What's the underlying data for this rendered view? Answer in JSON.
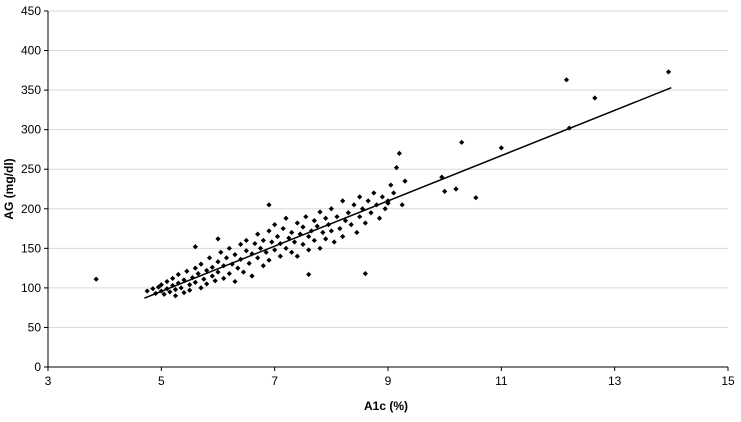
{
  "chart_data": {
    "type": "scatter",
    "xlabel": "A1c (%)",
    "ylabel": "AG (mg/dl)",
    "xlim": [
      3,
      15
    ],
    "ylim": [
      0,
      450
    ],
    "x_ticks": [
      3,
      5,
      7,
      9,
      11,
      13,
      15
    ],
    "y_ticks": [
      0,
      50,
      100,
      150,
      200,
      250,
      300,
      350,
      400,
      450
    ],
    "grid": "horizontal",
    "marker": "diamond",
    "colors": {
      "marker": "#000000",
      "trendline": "#000000",
      "gridline": "#d9d9d9"
    },
    "trendline": {
      "x": [
        4.7,
        14.0
      ],
      "y": [
        87,
        353
      ]
    },
    "points": [
      [
        3.85,
        111
      ],
      [
        4.75,
        96
      ],
      [
        4.85,
        99
      ],
      [
        4.9,
        93
      ],
      [
        4.95,
        101
      ],
      [
        5.0,
        96
      ],
      [
        5.0,
        104
      ],
      [
        5.05,
        92
      ],
      [
        5.1,
        99
      ],
      [
        5.1,
        108
      ],
      [
        5.15,
        95
      ],
      [
        5.2,
        103
      ],
      [
        5.2,
        112
      ],
      [
        5.25,
        98
      ],
      [
        5.25,
        90
      ],
      [
        5.3,
        106
      ],
      [
        5.3,
        117
      ],
      [
        5.35,
        100
      ],
      [
        5.4,
        94
      ],
      [
        5.4,
        110
      ],
      [
        5.45,
        121
      ],
      [
        5.5,
        104
      ],
      [
        5.5,
        97
      ],
      [
        5.55,
        113
      ],
      [
        5.6,
        125
      ],
      [
        5.6,
        107
      ],
      [
        5.65,
        118
      ],
      [
        5.7,
        100
      ],
      [
        5.7,
        130
      ],
      [
        5.75,
        111
      ],
      [
        5.8,
        122
      ],
      [
        5.8,
        105
      ],
      [
        5.85,
        138
      ],
      [
        5.9,
        115
      ],
      [
        5.9,
        126
      ],
      [
        5.95,
        109
      ],
      [
        6.0,
        133
      ],
      [
        6.0,
        120
      ],
      [
        6.05,
        145
      ],
      [
        6.1,
        112
      ],
      [
        6.1,
        128
      ],
      [
        6.15,
        138
      ],
      [
        6.2,
        118
      ],
      [
        6.2,
        150
      ],
      [
        6.25,
        130
      ],
      [
        6.3,
        142
      ],
      [
        6.3,
        108
      ],
      [
        6.35,
        125
      ],
      [
        6.4,
        155
      ],
      [
        6.4,
        136
      ],
      [
        6.45,
        120
      ],
      [
        6.5,
        147
      ],
      [
        6.5,
        160
      ],
      [
        6.55,
        131
      ],
      [
        6.6,
        143
      ],
      [
        6.6,
        115
      ],
      [
        6.65,
        156
      ],
      [
        6.7,
        138
      ],
      [
        6.7,
        168
      ],
      [
        6.75,
        150
      ],
      [
        6.8,
        128
      ],
      [
        6.8,
        160
      ],
      [
        6.85,
        145
      ],
      [
        6.9,
        172
      ],
      [
        6.9,
        135
      ],
      [
        6.95,
        158
      ],
      [
        7.0,
        148
      ],
      [
        7.0,
        180
      ],
      [
        7.05,
        165
      ],
      [
        7.1,
        140
      ],
      [
        7.1,
        156
      ],
      [
        7.15,
        175
      ],
      [
        7.2,
        150
      ],
      [
        7.2,
        188
      ],
      [
        7.25,
        163
      ],
      [
        7.3,
        145
      ],
      [
        7.3,
        170
      ],
      [
        7.35,
        158
      ],
      [
        7.4,
        182
      ],
      [
        7.4,
        140
      ],
      [
        7.45,
        168
      ],
      [
        7.5,
        177
      ],
      [
        7.5,
        155
      ],
      [
        7.55,
        190
      ],
      [
        7.6,
        165
      ],
      [
        7.6,
        148
      ],
      [
        7.65,
        172
      ],
      [
        7.7,
        185
      ],
      [
        7.7,
        160
      ],
      [
        7.75,
        178
      ],
      [
        7.8,
        196
      ],
      [
        7.8,
        150
      ],
      [
        7.85,
        170
      ],
      [
        7.9,
        188
      ],
      [
        7.9,
        162
      ],
      [
        7.95,
        180
      ],
      [
        8.0,
        200
      ],
      [
        8.0,
        172
      ],
      [
        8.05,
        158
      ],
      [
        8.1,
        190
      ],
      [
        8.15,
        175
      ],
      [
        8.2,
        210
      ],
      [
        8.2,
        165
      ],
      [
        8.25,
        185
      ],
      [
        8.3,
        195
      ],
      [
        8.35,
        180
      ],
      [
        8.4,
        205
      ],
      [
        8.45,
        170
      ],
      [
        8.5,
        190
      ],
      [
        8.5,
        215
      ],
      [
        8.55,
        200
      ],
      [
        8.6,
        182
      ],
      [
        8.65,
        210
      ],
      [
        8.7,
        195
      ],
      [
        8.75,
        220
      ],
      [
        8.8,
        205
      ],
      [
        8.85,
        188
      ],
      [
        8.9,
        215
      ],
      [
        8.95,
        200
      ],
      [
        9.0,
        210
      ],
      [
        9.05,
        230
      ],
      [
        9.1,
        220
      ],
      [
        9.15,
        252
      ],
      [
        9.2,
        270
      ],
      [
        9.25,
        205
      ],
      [
        9.3,
        235
      ],
      [
        6.0,
        162
      ],
      [
        5.6,
        152
      ],
      [
        6.9,
        205
      ],
      [
        7.6,
        117
      ],
      [
        8.6,
        118
      ],
      [
        9.0,
        207
      ],
      [
        9.95,
        240
      ],
      [
        10.0,
        222
      ],
      [
        10.2,
        225
      ],
      [
        10.3,
        284
      ],
      [
        10.55,
        214
      ],
      [
        11.0,
        277
      ],
      [
        12.15,
        363
      ],
      [
        12.2,
        302
      ],
      [
        12.65,
        340
      ],
      [
        13.95,
        373
      ]
    ]
  }
}
